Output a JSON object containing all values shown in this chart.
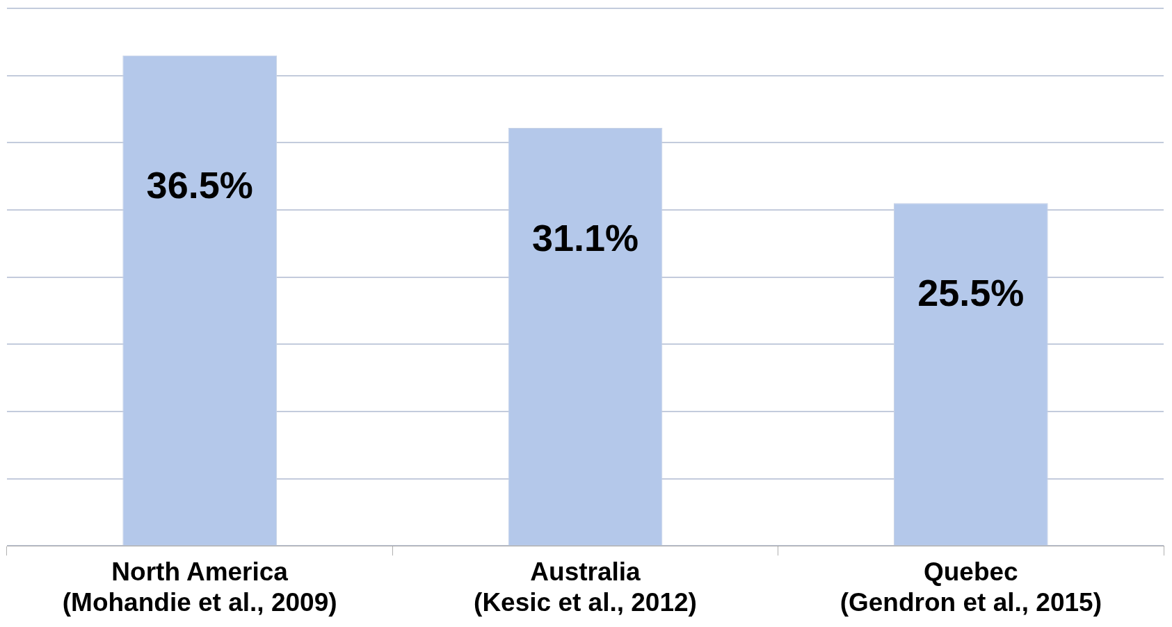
{
  "chart_data": {
    "type": "bar",
    "categories": [
      "North America\n(Mohandie et al., 2009)",
      "Australia\n(Kesic et al., 2012)",
      "Quebec\n(Gendron et al., 2015)"
    ],
    "values": [
      36.5,
      31.1,
      25.5
    ],
    "color": "#b4c8ea",
    "value_labels": [
      "36.5%",
      "31.1%",
      "25.5%"
    ],
    "ylim": [
      0,
      40
    ],
    "yticks": [
      {
        "value": 0,
        "label": null
      },
      {
        "value": 5,
        "label": null
      },
      {
        "value": 10,
        "label": null
      },
      {
        "value": 15,
        "label": null
      },
      {
        "value": 20,
        "label": null
      },
      {
        "value": 25,
        "label": null
      },
      {
        "value": 30,
        "label": null
      },
      {
        "value": 35,
        "label": null
      },
      {
        "value": 40,
        "label": null
      }
    ],
    "grid": "y",
    "tick_labels": "x",
    "legend": false
  }
}
